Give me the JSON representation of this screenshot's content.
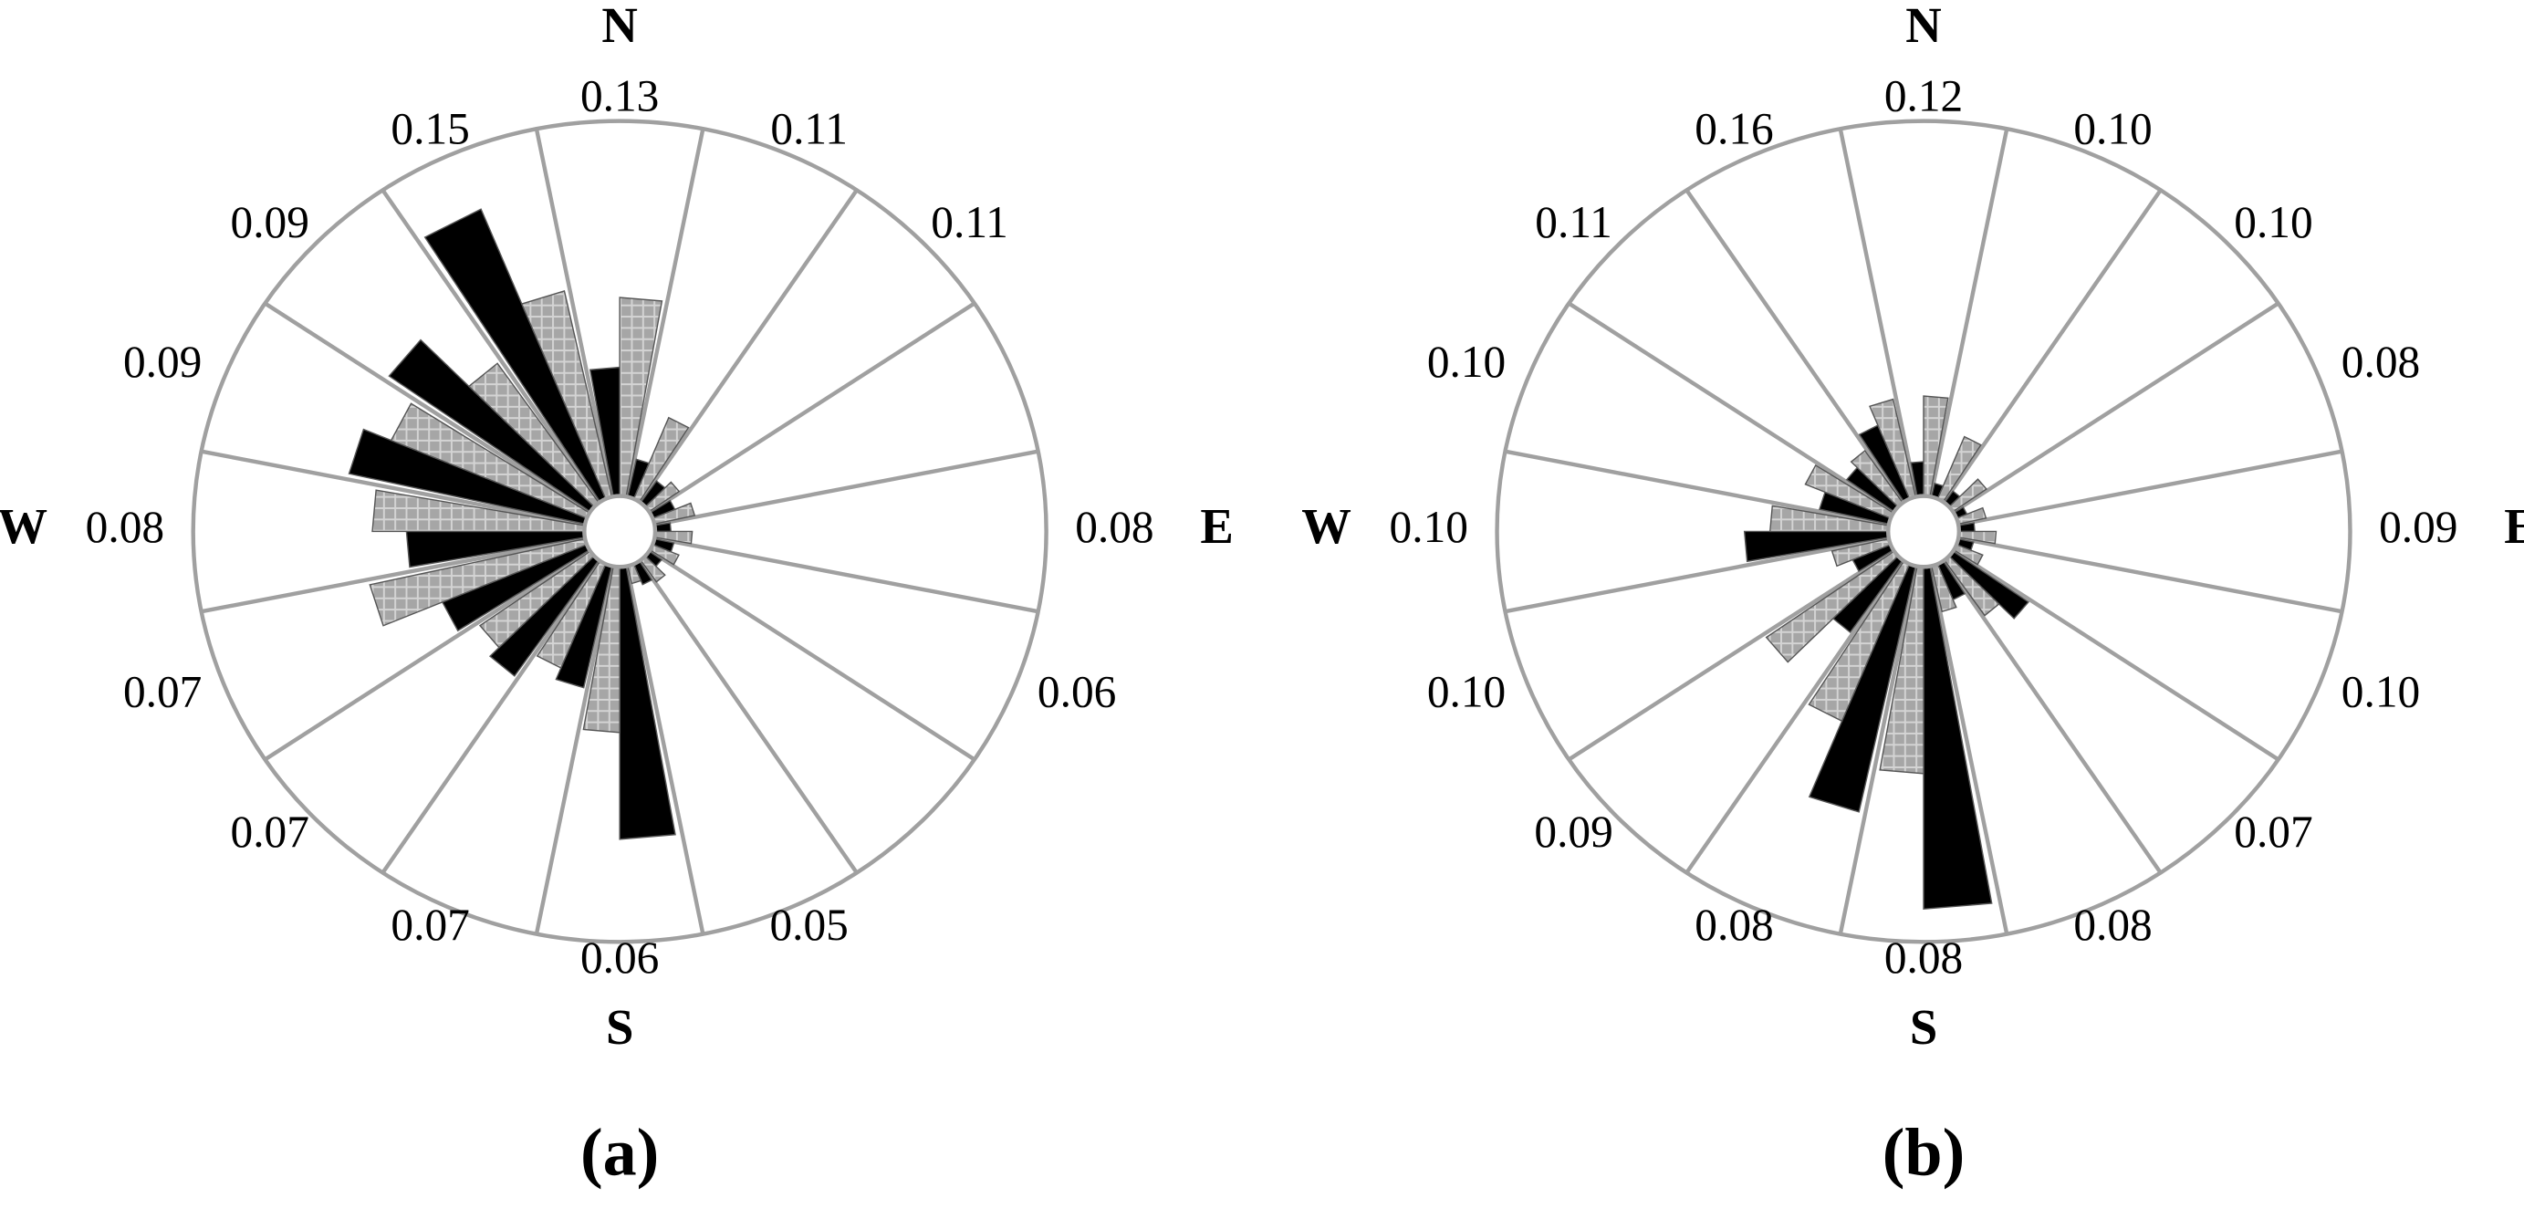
{
  "chart_data": [
    {
      "type": "rose",
      "label": "(a)",
      "categories": [
        "N",
        null,
        null,
        null,
        "E",
        null,
        null,
        null,
        "S",
        null,
        null,
        null,
        "W",
        null,
        null,
        null
      ],
      "sector_labels": [
        "0.13",
        "0.11",
        "0.11",
        null,
        "0.08",
        "0.06",
        null,
        "0.05",
        "0.06",
        "0.07",
        "0.07",
        "0.07",
        "0.08",
        "0.09",
        "0.09",
        "0.15"
      ],
      "rlim": [
        0,
        1
      ],
      "series": [
        {
          "color": "#000000",
          "hatch": false,
          "values": [
            0.4,
            0.18,
            0.15,
            0.14,
            0.12,
            0.13,
            0.12,
            0.14,
            0.75,
            0.39,
            0.43,
            0.45,
            0.5,
            0.65,
            0.66,
            0.85
          ]
        },
        {
          "color": "#a6a6a6",
          "hatch": true,
          "values": [
            0.57,
            0.3,
            0.17,
            0.18,
            0.17,
            0.15,
            0.15,
            0.13,
            0.49,
            0.36,
            0.4,
            0.6,
            0.58,
            0.58,
            0.5,
            0.6
          ]
        }
      ]
    },
    {
      "type": "rose",
      "label": "(b)",
      "categories": [
        "N",
        null,
        null,
        null,
        "E",
        null,
        null,
        null,
        "S",
        null,
        null,
        null,
        "W",
        null,
        null,
        null
      ],
      "sector_labels": [
        "0.12",
        "0.10",
        "0.10",
        "0.08",
        "0.09",
        "0.10",
        "0.07",
        "0.08",
        "0.08",
        "0.08",
        "0.09",
        "0.10",
        "0.10",
        "0.10",
        "0.11",
        "0.16"
      ],
      "rlim": [
        0,
        1
      ],
      "series": [
        {
          "color": "#000000",
          "hatch": false,
          "values": [
            0.17,
            0.12,
            0.12,
            0.11,
            0.12,
            0.12,
            0.3,
            0.18,
            0.92,
            0.7,
            0.3,
            0.18,
            0.42,
            0.25,
            0.22,
            0.28
          ]
        },
        {
          "color": "#a6a6a6",
          "hatch": true,
          "values": [
            0.33,
            0.25,
            0.18,
            0.15,
            0.17,
            0.15,
            0.25,
            0.2,
            0.59,
            0.5,
            0.45,
            0.22,
            0.36,
            0.3,
            0.24,
            0.33
          ]
        }
      ]
    }
  ]
}
